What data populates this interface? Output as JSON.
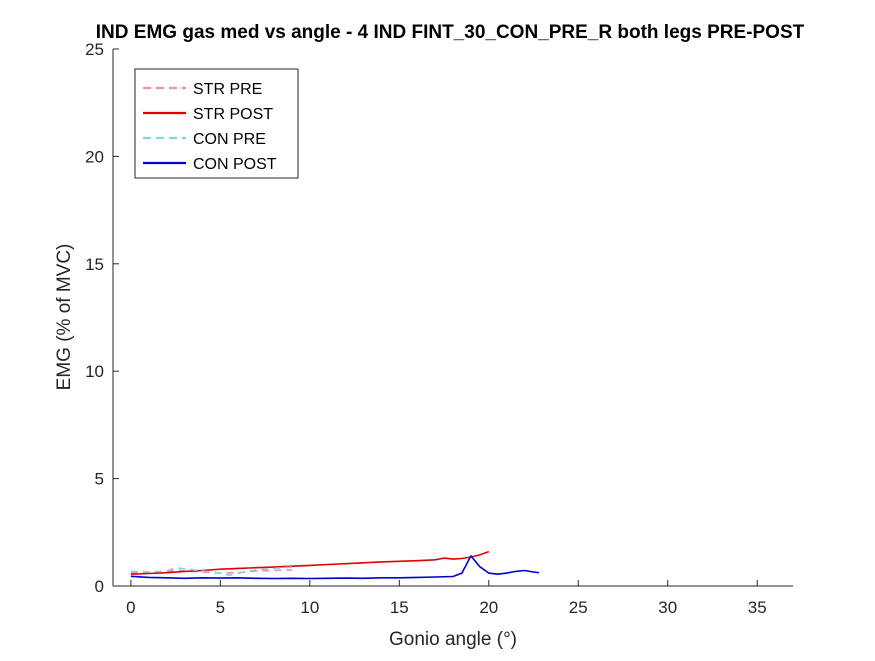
{
  "chart_data": {
    "type": "line",
    "title": "IND EMG gas med vs angle - 4 IND FINT_30_CON_PRE_R both legs PRE-POST",
    "xlabel": "Gonio angle (°)",
    "ylabel": "EMG (% of MVC)",
    "xlim": [
      -1,
      37
    ],
    "ylim": [
      0,
      25
    ],
    "xticks": [
      0,
      5,
      10,
      15,
      20,
      25,
      30,
      35
    ],
    "yticks": [
      0,
      5,
      10,
      15,
      20,
      25
    ],
    "grid": false,
    "legend_position": "top-left",
    "series": [
      {
        "name": "STR PRE",
        "color": "#f28cb1",
        "dash": "dashed",
        "x": [
          0,
          1,
          2,
          2.5,
          3,
          4,
          5,
          6,
          7,
          8,
          9
        ],
        "y": [
          0.6,
          0.6,
          0.65,
          0.75,
          0.7,
          0.65,
          0.6,
          0.62,
          0.7,
          0.72,
          0.75
        ]
      },
      {
        "name": "STR POST",
        "color": "#e00000",
        "dash": "solid",
        "x": [
          0,
          1,
          2,
          3,
          4,
          5,
          6,
          7,
          8,
          9,
          10,
          11,
          12,
          13,
          14,
          15,
          16,
          17,
          17.5,
          18,
          18.5,
          19,
          19.5,
          20
        ],
        "y": [
          0.55,
          0.58,
          0.62,
          0.68,
          0.72,
          0.78,
          0.82,
          0.85,
          0.88,
          0.92,
          0.96,
          1.0,
          1.04,
          1.08,
          1.12,
          1.15,
          1.18,
          1.22,
          1.3,
          1.25,
          1.28,
          1.35,
          1.45,
          1.6
        ]
      },
      {
        "name": "CON PRE",
        "color": "#87ceeb",
        "dash": "dashed",
        "x": [
          0,
          1,
          2,
          2.5,
          3,
          4,
          5,
          5.5,
          6,
          7,
          8,
          9
        ],
        "y": [
          0.68,
          0.65,
          0.7,
          0.85,
          0.8,
          0.7,
          0.6,
          0.5,
          0.6,
          0.75,
          0.82,
          0.88
        ]
      },
      {
        "name": "CON POST",
        "color": "#0000cd",
        "dash": "solid",
        "x": [
          0,
          1,
          2,
          3,
          4,
          5,
          6,
          7,
          8,
          9,
          10,
          11,
          12,
          13,
          14,
          15,
          16,
          17,
          18,
          18.5,
          19,
          19.5,
          20,
          20.5,
          21,
          21.5,
          22,
          22.5,
          22.8
        ],
        "y": [
          0.45,
          0.4,
          0.38,
          0.36,
          0.38,
          0.37,
          0.38,
          0.36,
          0.35,
          0.36,
          0.35,
          0.36,
          0.37,
          0.36,
          0.38,
          0.38,
          0.4,
          0.42,
          0.44,
          0.6,
          1.4,
          0.9,
          0.6,
          0.55,
          0.6,
          0.68,
          0.72,
          0.65,
          0.62
        ]
      }
    ]
  }
}
